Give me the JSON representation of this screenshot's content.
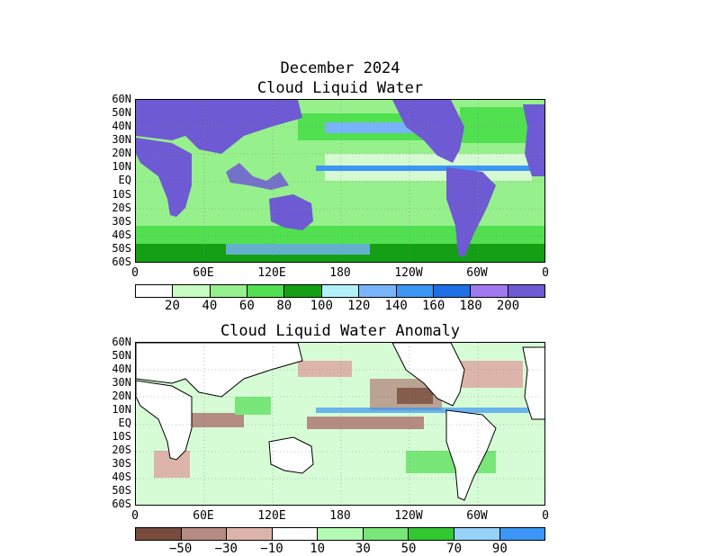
{
  "top": {
    "title_line1": "December 2024",
    "title_line2": "Cloud Liquid Water",
    "colorbar": {
      "colors": [
        "#ffffff",
        "#c8fcc0",
        "#96f08c",
        "#50e050",
        "#14a014",
        "#b4f0fa",
        "#78b4fa",
        "#3c96f5",
        "#1e6ee6",
        "#a078f0",
        "#6e5ad2"
      ],
      "labels": [
        "20",
        "40",
        "60",
        "80",
        "100",
        "120",
        "140",
        "160",
        "180",
        "200"
      ]
    }
  },
  "bottom": {
    "title": "Cloud Liquid Water Anomaly",
    "colorbar": {
      "colors": [
        "#784b3c",
        "#b48c82",
        "#dcb4aa",
        "#ffffff",
        "#b4fab4",
        "#78e678",
        "#32c832",
        "#96d2fa",
        "#3c96f5"
      ],
      "labels": [
        "−50",
        "−30",
        "−10",
        "10",
        "30",
        "50",
        "70",
        "90"
      ]
    }
  },
  "axes": {
    "lat_labels": [
      "60N",
      "50N",
      "40N",
      "30N",
      "20N",
      "10N",
      "EQ",
      "10S",
      "20S",
      "30S",
      "40S",
      "50S",
      "60S"
    ],
    "lon_labels": [
      "0",
      "60E",
      "120E",
      "180",
      "120W",
      "60W",
      "0"
    ]
  },
  "map_colors": {
    "land_top": "#6e5ad2",
    "ocean_top": "#96f08c",
    "land_bottom": "#ffffff",
    "ocean_bottom": "#b4fab4"
  }
}
